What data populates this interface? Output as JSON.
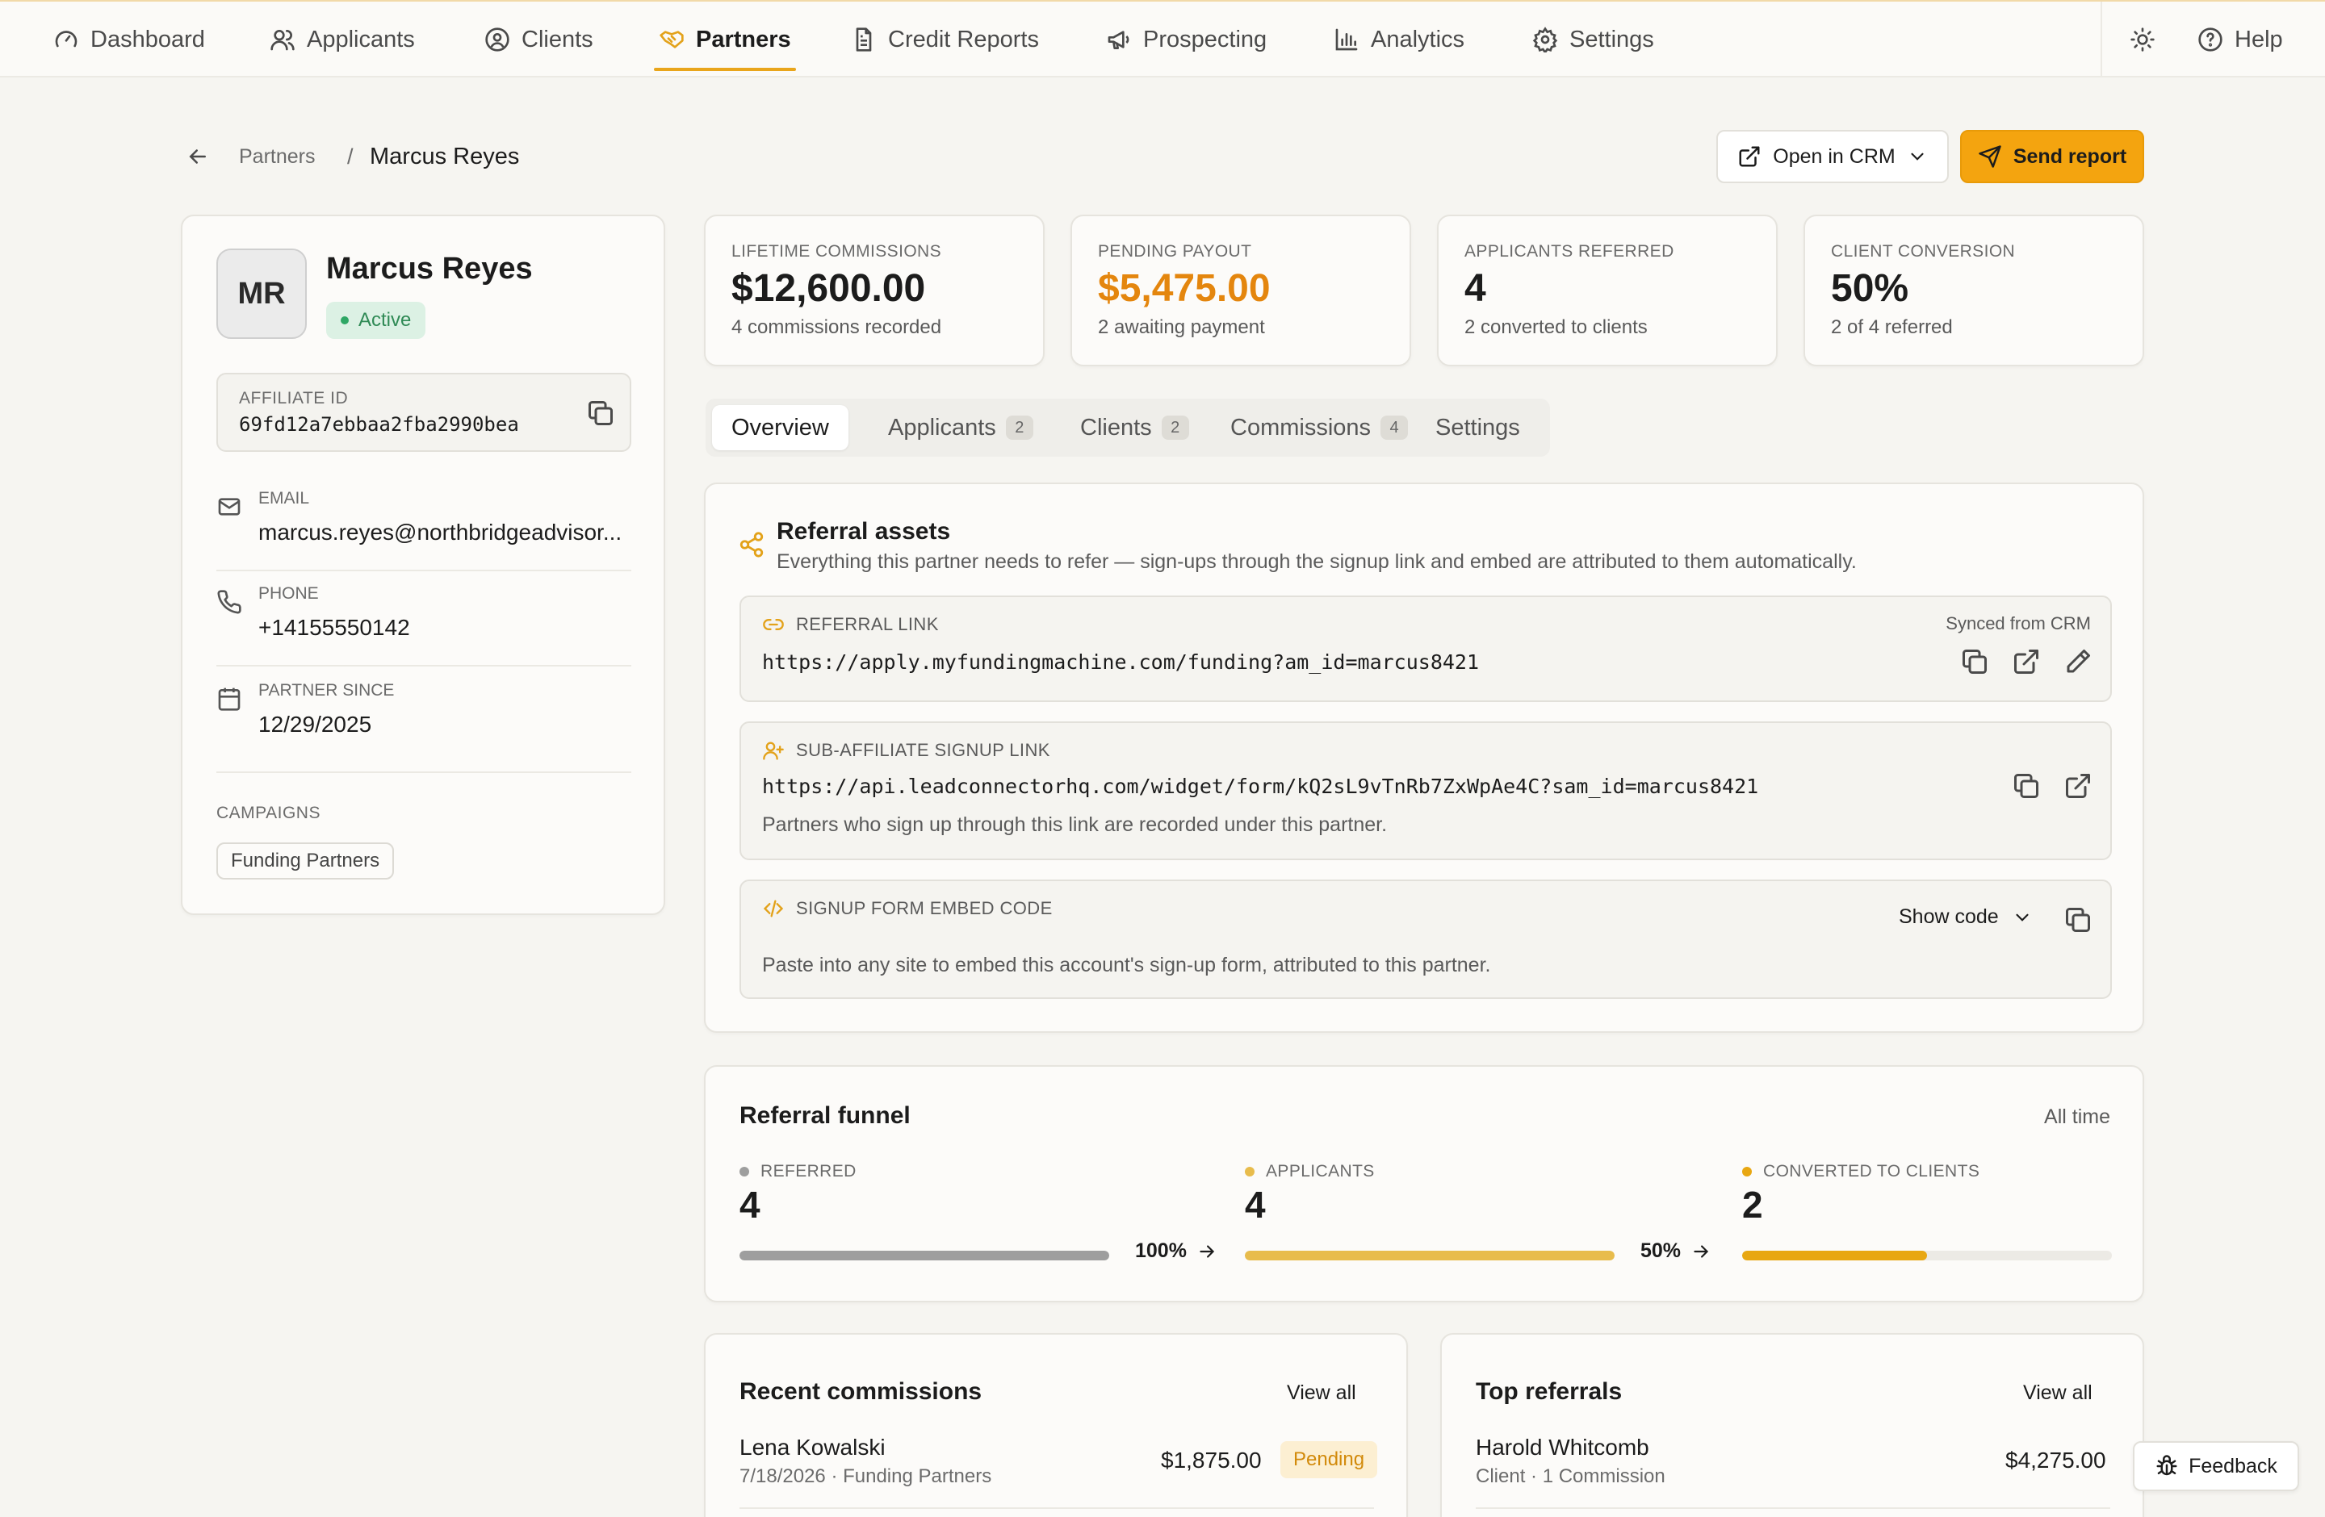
{
  "nav": {
    "items": [
      {
        "label": "Dashboard",
        "icon": "gauge-icon"
      },
      {
        "label": "Applicants",
        "icon": "users-icon"
      },
      {
        "label": "Clients",
        "icon": "user-circle-icon"
      },
      {
        "label": "Partners",
        "icon": "handshake-icon",
        "active": true
      },
      {
        "label": "Credit Reports",
        "icon": "file-text-icon"
      },
      {
        "label": "Prospecting",
        "icon": "megaphone-icon"
      },
      {
        "label": "Analytics",
        "icon": "bar-chart-icon"
      },
      {
        "label": "Settings",
        "icon": "gear-icon"
      }
    ],
    "help": "Help"
  },
  "breadcrumb": {
    "parent": "Partners",
    "separator": "/",
    "current": "Marcus Reyes"
  },
  "actions": {
    "open_crm": "Open in CRM",
    "send_report": "Send report"
  },
  "profile": {
    "initials": "MR",
    "name": "Marcus Reyes",
    "status": "Active",
    "affiliate_id_label": "AFFILIATE ID",
    "affiliate_id": "69fd12a7ebbaa2fba2990bea",
    "email_label": "EMAIL",
    "email": "marcus.reyes@northbridgeadvisor...",
    "phone_label": "PHONE",
    "phone": "+14155550142",
    "since_label": "PARTNER SINCE",
    "since": "12/29/2025",
    "campaigns_label": "CAMPAIGNS",
    "campaigns": [
      "Funding Partners"
    ]
  },
  "stats": [
    {
      "label": "LIFETIME COMMISSIONS",
      "value": "$12,600.00",
      "sub": "4 commissions recorded"
    },
    {
      "label": "PENDING PAYOUT",
      "value": "$5,475.00",
      "sub": "2 awaiting payment"
    },
    {
      "label": "APPLICANTS REFERRED",
      "value": "4",
      "sub": "2 converted to clients"
    },
    {
      "label": "CLIENT CONVERSION",
      "value": "50%",
      "sub": "2 of 4 referred"
    }
  ],
  "tabs": [
    {
      "label": "Overview",
      "count": ""
    },
    {
      "label": "Applicants",
      "count": "2"
    },
    {
      "label": "Clients",
      "count": "2"
    },
    {
      "label": "Commissions",
      "count": "4"
    },
    {
      "label": "Settings",
      "count": ""
    }
  ],
  "assets": {
    "title": "Referral assets",
    "desc": "Everything this partner needs to refer — sign-ups through the signup link and embed are attributed to them automatically.",
    "referral": {
      "label": "REFERRAL LINK",
      "synced": "Synced from CRM",
      "url": "https://apply.myfundingmachine.com/funding?am_id=marcus8421"
    },
    "sub_affiliate": {
      "label": "SUB-AFFILIATE SIGNUP LINK",
      "url": "https://api.leadconnectorhq.com/widget/form/kQ2sL9vTnRb7ZxWpAe4C?sam_id=marcus8421",
      "note": "Partners who sign up through this link are recorded under this partner."
    },
    "embed": {
      "label": "SIGNUP FORM EMBED CODE",
      "toggle": "Show code",
      "note": "Paste into any site to embed this account's sign-up form, attributed to this partner."
    }
  },
  "funnel": {
    "title": "Referral funnel",
    "range": "All time",
    "stages": [
      {
        "label": "REFERRED",
        "value": "4",
        "fill": 1.0,
        "color": "#9e9e9e"
      },
      {
        "label": "APPLICANTS",
        "value": "4",
        "fill": 1.0,
        "color": "#e8bc4c"
      },
      {
        "label": "CONVERTED TO CLIENTS",
        "value": "2",
        "fill": 0.5,
        "color": "#e8a712"
      }
    ],
    "rates": [
      "100%",
      "50%"
    ]
  },
  "recent_commissions": {
    "title": "Recent commissions",
    "view_all": "View all",
    "rows": [
      {
        "name": "Lena Kowalski",
        "sub": "7/18/2026 · Funding Partners",
        "amount": "$1,875.00",
        "status": "Pending"
      }
    ]
  },
  "top_referrals": {
    "title": "Top referrals",
    "view_all": "View all",
    "rows": [
      {
        "name": "Harold Whitcomb",
        "sub": "Client · 1 Commission",
        "amount": "$4,275.00"
      }
    ]
  },
  "feedback": "Feedback",
  "colors": {
    "accent": "#f4a40f",
    "active_green": "#2f8a55",
    "pending_orange": "#e4860e"
  }
}
